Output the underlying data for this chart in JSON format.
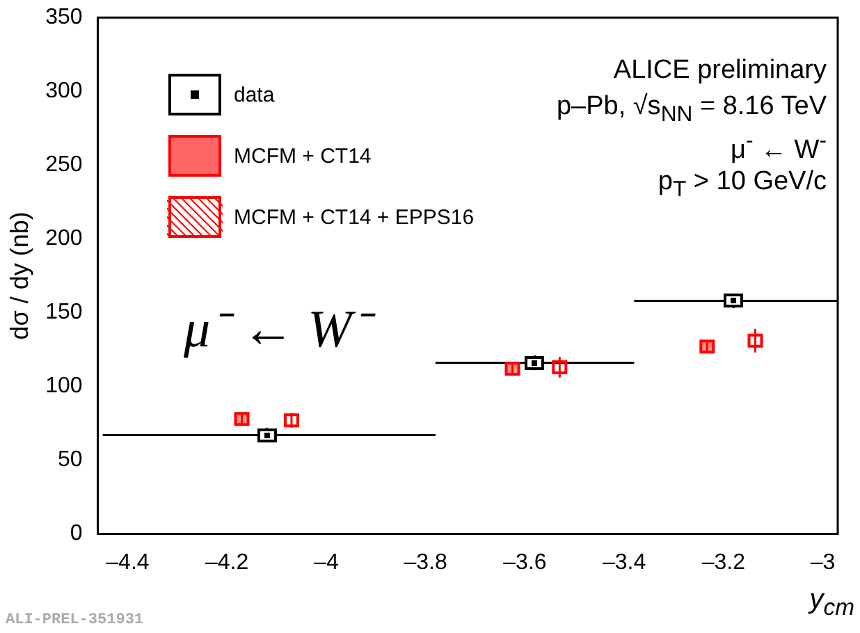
{
  "chart_data": {
    "type": "scatter",
    "xlabel": "y$_{cm}$",
    "ylabel": "dσ / dy (nb)",
    "xlim": [
      -4.46,
      -2.97
    ],
    "xticks": [
      {
        "value": -4.4,
        "label": "–4.4"
      },
      {
        "value": -4.2,
        "label": "–4.2"
      },
      {
        "value": -4,
        "label": "–4"
      },
      {
        "value": -3.8,
        "label": "–3.8"
      },
      {
        "value": -3.6,
        "label": "–3.6"
      },
      {
        "value": -3.4,
        "label": "–3.4"
      },
      {
        "value": -3.2,
        "label": "–3.2"
      },
      {
        "value": -3,
        "label": "–3"
      }
    ],
    "ylim": [
      0,
      350
    ],
    "yticks": [
      0,
      50,
      100,
      150,
      200,
      250,
      300,
      350
    ],
    "series": [
      {
        "name": "data",
        "color": "#000000",
        "marker": "square",
        "x": [
          -4.12,
          -3.58,
          -3.18
        ],
        "values": [
          67,
          116,
          158
        ],
        "errors": [
          5,
          5,
          5
        ],
        "xerrors": [
          [
            -4.45,
            -3.78
          ],
          0.2,
          [
            -3.38,
            -2.97
          ]
        ]
      },
      {
        "name": "MCFM + CT14",
        "color": "#ff0000",
        "marker": "square",
        "x": [
          -4.17,
          -3.625,
          -3.233
        ],
        "values": [
          78,
          112,
          127
        ],
        "errors": [
          4,
          4,
          4
        ]
      },
      {
        "name": "MCFM + CT14 + EPPS16",
        "color": "#ff0000",
        "marker": "square",
        "x": [
          -4.07,
          -3.53,
          -3.136
        ],
        "values": [
          77,
          113,
          131
        ],
        "errors": [
          5,
          7,
          8
        ]
      }
    ],
    "annotations": [
      "ALICE preliminary",
      "p–Pb, √s$_{NN}$ = 8.16 TeV",
      "μ$^{-}$ ← W$^{-}$",
      "p$_{T}$ > 10 GeV/c",
      "μ⁻ ← W⁻",
      "ALI-PREL-351931"
    ],
    "legend": "top left",
    "grid": false
  }
}
